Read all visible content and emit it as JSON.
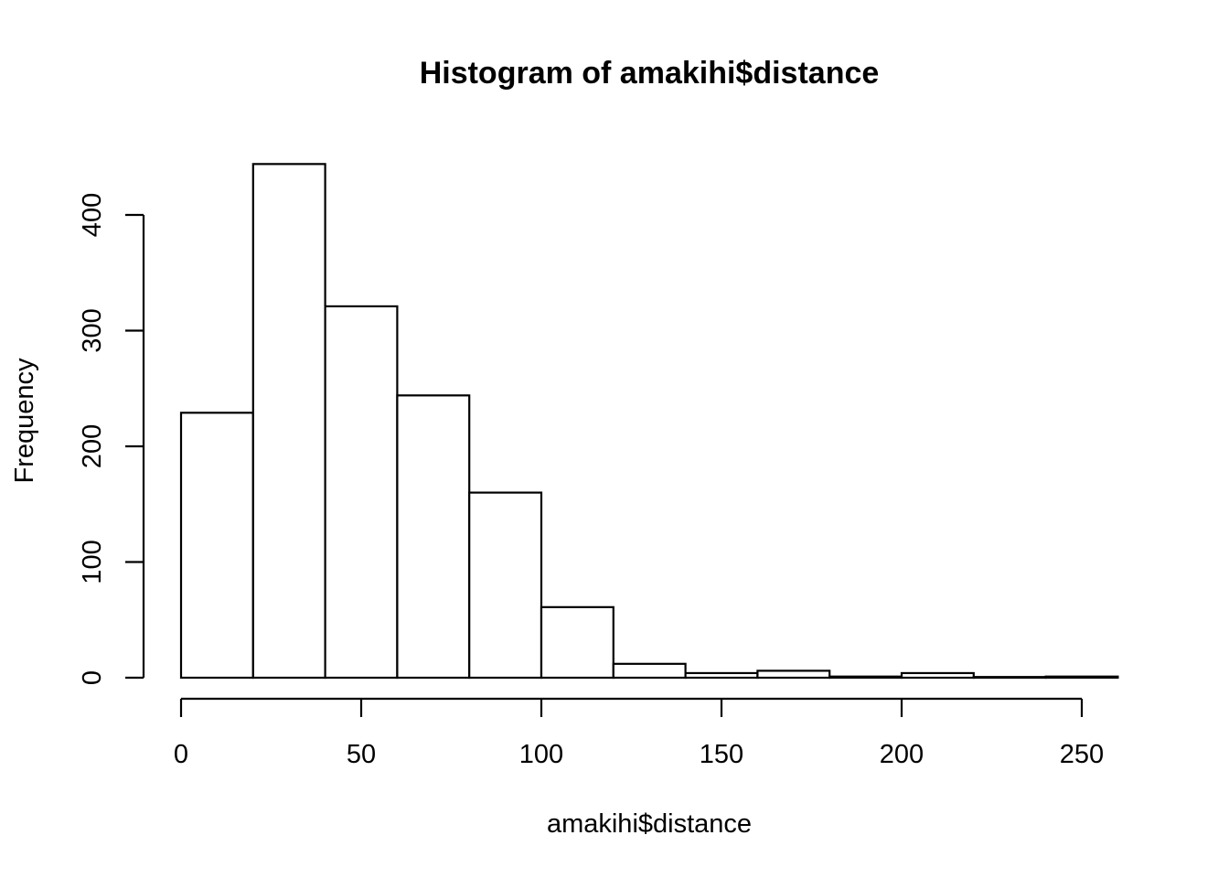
{
  "chart_data": {
    "type": "bar",
    "title": "Histogram of amakihi$distance",
    "xlabel": "amakihi$distance",
    "ylabel": "Frequency",
    "bins": [
      {
        "start": 0,
        "end": 20,
        "count": 229
      },
      {
        "start": 20,
        "end": 40,
        "count": 444
      },
      {
        "start": 40,
        "end": 60,
        "count": 321
      },
      {
        "start": 60,
        "end": 80,
        "count": 244
      },
      {
        "start": 80,
        "end": 100,
        "count": 160
      },
      {
        "start": 100,
        "end": 120,
        "count": 61
      },
      {
        "start": 120,
        "end": 140,
        "count": 12
      },
      {
        "start": 140,
        "end": 160,
        "count": 4
      },
      {
        "start": 160,
        "end": 180,
        "count": 6
      },
      {
        "start": 180,
        "end": 200,
        "count": 1
      },
      {
        "start": 200,
        "end": 220,
        "count": 4
      },
      {
        "start": 220,
        "end": 240,
        "count": 0
      },
      {
        "start": 240,
        "end": 260,
        "count": 1
      }
    ],
    "xticks": [
      0,
      50,
      100,
      150,
      200,
      250
    ],
    "yticks": [
      0,
      100,
      200,
      300,
      400
    ],
    "xlim": [
      0,
      260
    ],
    "ylim": [
      0,
      444
    ],
    "grid": false,
    "bar_fill": "#ffffff",
    "bar_stroke": "#000000"
  }
}
